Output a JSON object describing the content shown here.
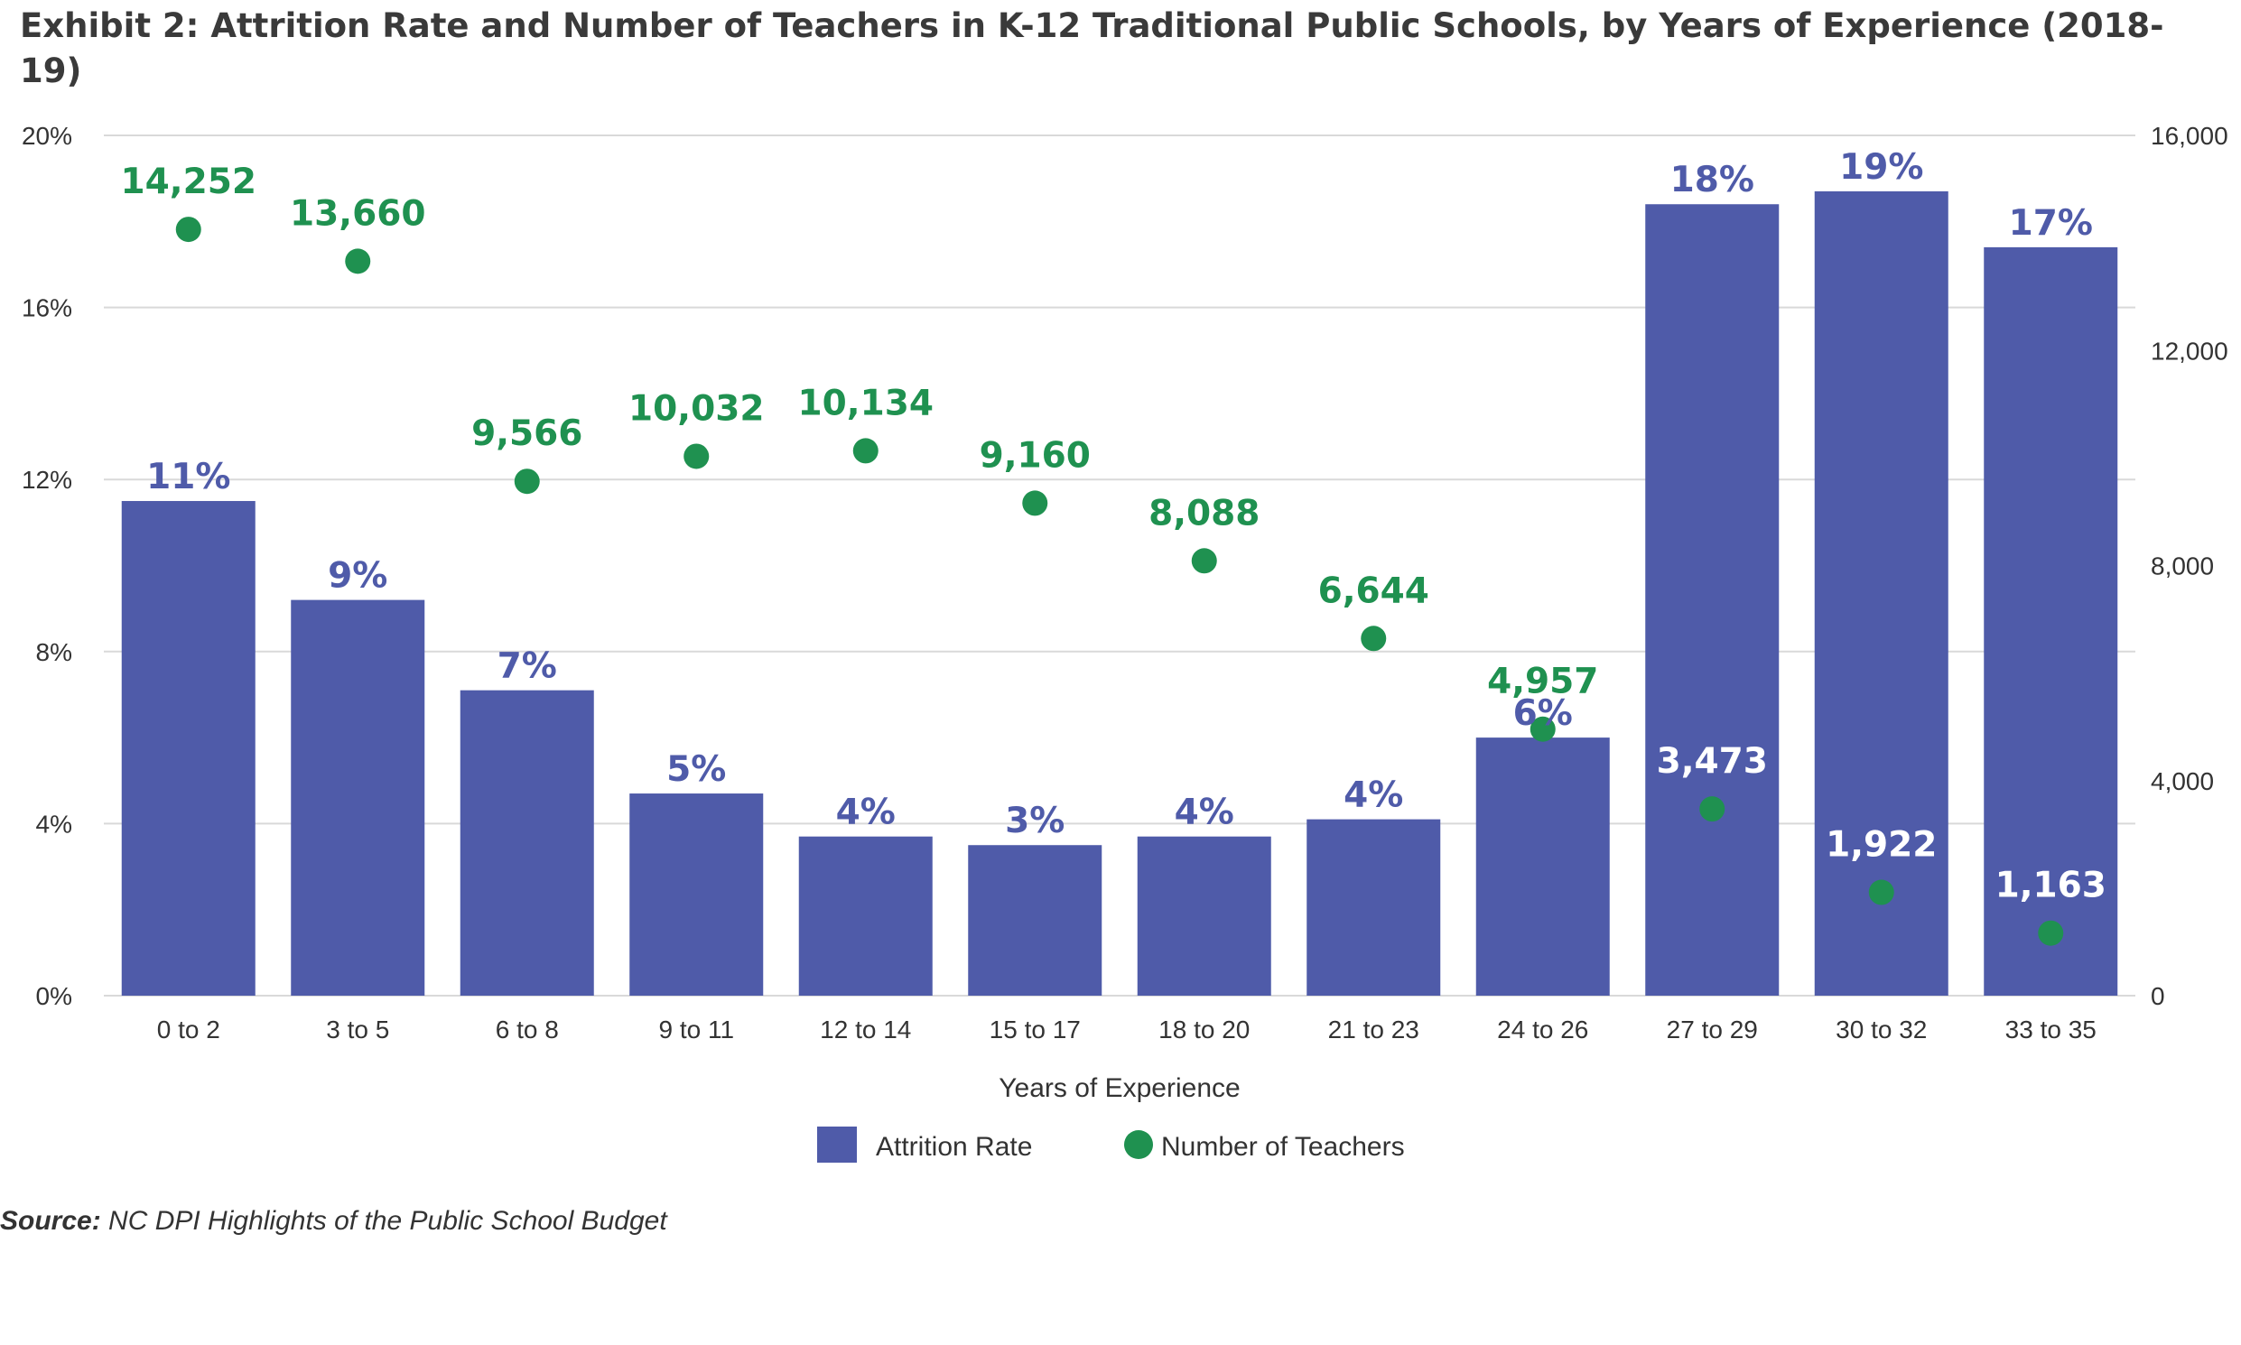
{
  "title": "Exhibit 2: Attrition Rate and Number of Teachers in K-12 Traditional Public Schools, by Years of Experience (2018-19)",
  "source": {
    "label": "Source:",
    "text": " NC DPI Highlights of the Public School Budget"
  },
  "colors": {
    "bar": "#4F5BA9",
    "dot": "#1F9150",
    "grid": "#D9D9D9",
    "axis_text": "#333333"
  },
  "chart_data": {
    "type": "bar",
    "xlabel": "Years of Experience",
    "categories": [
      "0 to 2",
      "3 to 5",
      "6 to 8",
      "9 to 11",
      "12 to 14",
      "15 to 17",
      "18 to 20",
      "21 to 23",
      "24 to 26",
      "27 to 29",
      "30 to 32",
      "33 to 35"
    ],
    "series": [
      {
        "name": "Attrition Rate",
        "type": "bar",
        "axis": "left",
        "values": [
          11.5,
          9.2,
          7.1,
          4.7,
          3.7,
          3.5,
          3.7,
          4.1,
          6.0,
          18.4,
          18.7,
          17.4
        ],
        "labels": [
          "11%",
          "9%",
          "7%",
          "5%",
          "4%",
          "3%",
          "4%",
          "4%",
          "6%",
          "18%",
          "19%",
          "17%"
        ]
      },
      {
        "name": "Number of Teachers",
        "type": "scatter",
        "axis": "right",
        "values": [
          14252,
          13660,
          9566,
          10032,
          10134,
          9160,
          8088,
          6644,
          4957,
          3473,
          1922,
          1163
        ],
        "labels": [
          "14,252",
          "13,660",
          "9,566",
          "10,032",
          "10,134",
          "9,160",
          "8,088",
          "6,644",
          "4,957",
          "3,473",
          "1,922",
          "1,163"
        ]
      }
    ],
    "y_left": {
      "min": 0,
      "max": 20,
      "ticks": [
        "0%",
        "4%",
        "8%",
        "12%",
        "16%",
        "20%"
      ]
    },
    "y_right": {
      "min": 0,
      "max": 16000,
      "ticks": [
        "0",
        "4,000",
        "8,000",
        "12,000",
        "16,000"
      ]
    },
    "grid": true,
    "legend_position": "bottom"
  }
}
